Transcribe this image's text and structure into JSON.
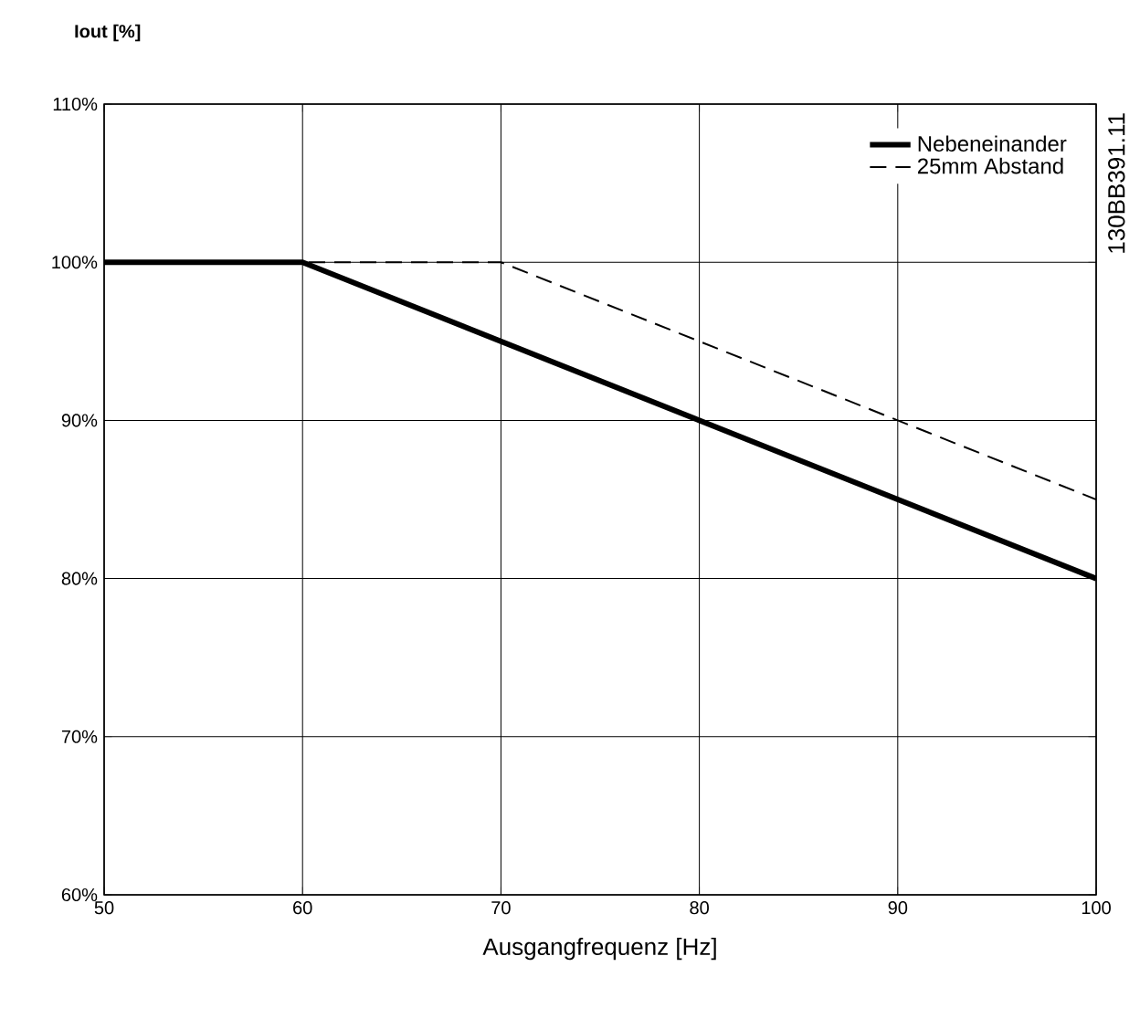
{
  "chart_data": {
    "type": "line",
    "ylabel": "**Iout [%]**",
    "xlabel": "Ausgangfrequenz [Hz]",
    "annotations": [
      "130BB391.11"
    ],
    "xlim": [
      50,
      100
    ],
    "xticks": [
      50,
      60,
      70,
      80,
      90,
      100
    ],
    "ylim": [
      60,
      110
    ],
    "yticks": [
      {
        "value": 60,
        "label": "60%"
      },
      {
        "value": 70,
        "label": "70%"
      },
      {
        "value": 80,
        "label": "80%"
      },
      {
        "value": 90,
        "label": "90%"
      },
      {
        "value": 100,
        "label": "100%"
      },
      {
        "value": 110,
        "label": "110%"
      }
    ],
    "grid": true,
    "legend": "top right",
    "series": [
      {
        "name": "Nebeneinander",
        "color": "#000000",
        "line_style": "solid",
        "x": [
          50,
          60,
          100
        ],
        "values": [
          100,
          100,
          80
        ]
      },
      {
        "name": "25mm Abstand",
        "color": "#000000",
        "line_style": "dashed",
        "x": [
          50,
          70,
          100
        ],
        "values": [
          100,
          100,
          85
        ]
      }
    ]
  }
}
